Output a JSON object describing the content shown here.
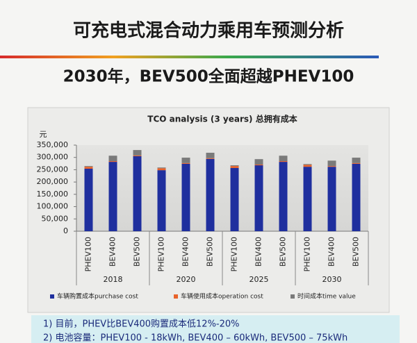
{
  "slide": {
    "title": "可充电式混合动力乘用车预测分析",
    "subtitle": "2030年，BEV500全面超越PHEV100",
    "notes": [
      "1)  目前，PHEV比BEV400购置成本低12%-20%",
      "2)  电池容量：PHEV100 - 18kWh, BEV400 – 60kWh, BEV500 – 75kWh"
    ]
  },
  "chart_data": {
    "type": "stacked_bar",
    "title": "TCO analysis (3 years) 总拥有成本",
    "y_label": "元",
    "categories": [
      "PHEV100",
      "BEV400",
      "BEV500",
      "PHEV100",
      "BEV400",
      "BEV500",
      "PHEV100",
      "BEV400",
      "BEV500",
      "PHEV100",
      "BEV400",
      "BEV500"
    ],
    "groups": [
      "2018",
      "2020",
      "2025",
      "2030"
    ],
    "series": [
      {
        "name": "车辆购置成本purchase cost",
        "color": "#1f2f9e",
        "values": [
          254000,
          282000,
          305000,
          248000,
          274000,
          294000,
          257000,
          268000,
          282000,
          262000,
          262000,
          274000
        ]
      },
      {
        "name": "车辆使用成本operation cost",
        "color": "#e8632b",
        "values": [
          8000,
          3000,
          3000,
          8000,
          3000,
          3000,
          8000,
          3000,
          3000,
          8000,
          3000,
          3000
        ]
      },
      {
        "name": "时间成本time value",
        "color": "#7a7a7a",
        "values": [
          3000,
          22000,
          22000,
          3000,
          22000,
          22000,
          3000,
          22000,
          22000,
          3000,
          22000,
          22000
        ]
      }
    ],
    "ylim": [
      0,
      350000
    ],
    "yticks": [
      0,
      {
        "value": 50000,
        "label": "50,000"
      },
      {
        "value": 100000,
        "label": "100,000"
      },
      {
        "value": 150000,
        "label": "150,000"
      },
      {
        "value": 200000,
        "label": "200,000"
      },
      {
        "value": 250000,
        "label": "250,000"
      },
      {
        "value": 300000,
        "label": "300,000"
      },
      {
        "value": 350000,
        "label": "350,000"
      }
    ]
  }
}
